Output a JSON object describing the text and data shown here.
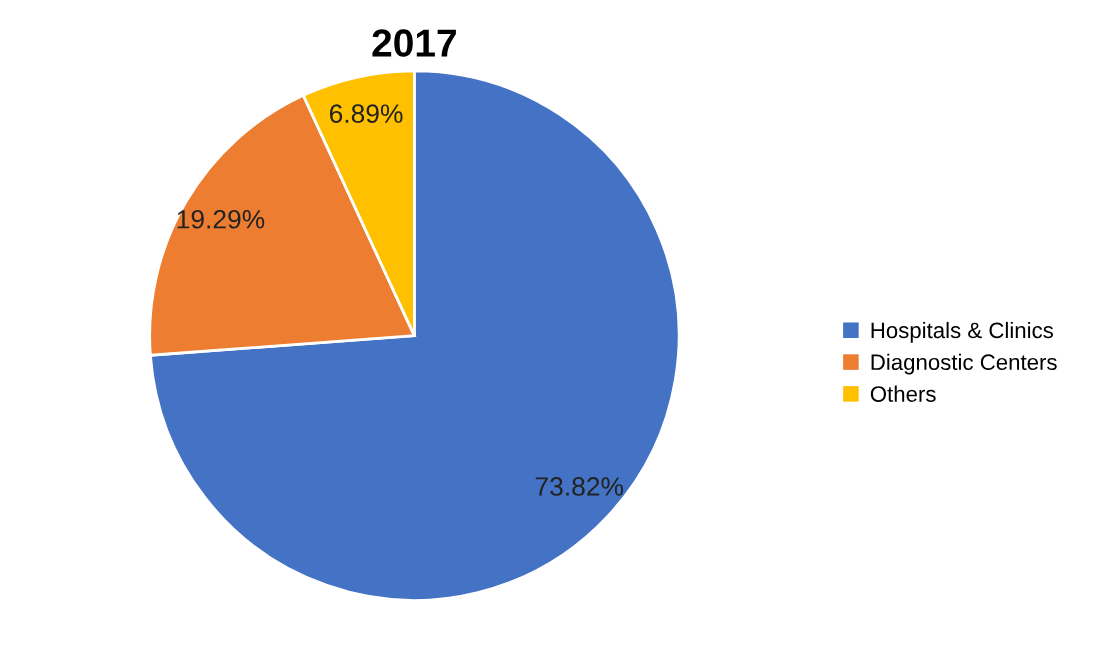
{
  "chart_data": {
    "type": "pie",
    "title": "2017",
    "categories": [
      "Hospitals & Clinics",
      "Diagnostic Centers",
      "Others"
    ],
    "values": [
      73.82,
      19.29,
      6.89
    ],
    "colors": [
      "#4472c4",
      "#ed7d31",
      "#ffc000"
    ],
    "value_labels": [
      "73.82%",
      "19.29%",
      "6.89%"
    ],
    "legend": "right"
  }
}
